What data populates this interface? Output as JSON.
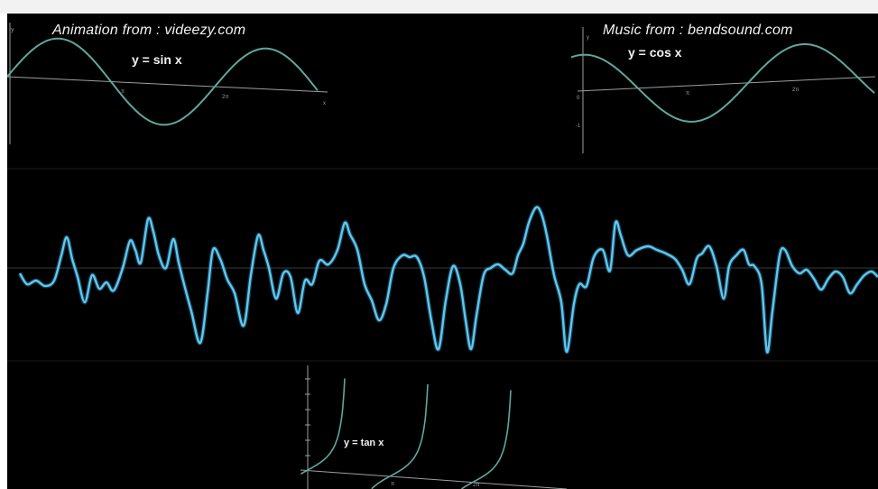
{
  "colors": {
    "background": "#000000",
    "curve_teal": "#5fa89c",
    "axis_gray": "#9aa0a0",
    "waveform": "#5ec8ef",
    "text": "#f2f2f2"
  },
  "credits": {
    "animation": "Animation from : videezy.com",
    "music": "Music from : bendsound.com"
  },
  "graphs": {
    "sine": {
      "equation": "y = sin x",
      "axis_y_label": "y",
      "tick_pi": "π",
      "tick_2pi": "2π",
      "tick_end": "x"
    },
    "cosine": {
      "equation": "y = cos x",
      "axis_y_label": "y",
      "tick_pi": "π",
      "tick_2pi": "2π",
      "tick_zero": "0",
      "tick_neg": "-1"
    },
    "tangent": {
      "equation": "y = tan x",
      "tick_pi": "π",
      "tick_2pi": "2π"
    }
  },
  "waveform": {
    "description_icon": "oscilloscope-waveform",
    "baseline_visible": true
  }
}
